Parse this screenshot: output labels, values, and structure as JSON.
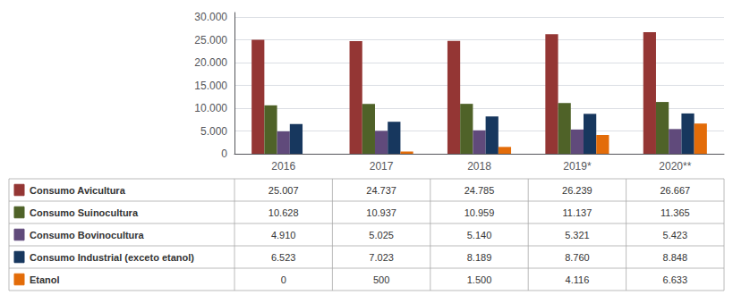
{
  "chart_data": {
    "type": "bar",
    "categories": [
      "2016",
      "2017",
      "2018",
      "2019*",
      "2020**"
    ],
    "series": [
      {
        "name": "Consumo Avicultura",
        "color": "#943634",
        "values": [
          25007,
          24737,
          24785,
          26239,
          26667
        ],
        "value_labels": [
          "25.007",
          "24.737",
          "24.785",
          "26.239",
          "26.667"
        ]
      },
      {
        "name": "Consumo Suinocultura",
        "color": "#4f6228",
        "values": [
          10628,
          10937,
          10959,
          11137,
          11365
        ],
        "value_labels": [
          "10.628",
          "10.937",
          "10.959",
          "11.137",
          "11.365"
        ]
      },
      {
        "name": "Consumo Bovinocultura",
        "color": "#604a7b",
        "values": [
          4910,
          5025,
          5140,
          5321,
          5423
        ],
        "value_labels": [
          "4.910",
          "5.025",
          "5.140",
          "5.321",
          "5.423"
        ]
      },
      {
        "name": "Consumo Industrial (exceto etanol)",
        "color": "#17375e",
        "values": [
          6523,
          7023,
          8189,
          8760,
          8848
        ],
        "value_labels": [
          "6.523",
          "7.023",
          "8.189",
          "8.760",
          "8.848"
        ]
      },
      {
        "name": "Etanol",
        "color": "#e36c09",
        "values": [
          0,
          500,
          1500,
          4116,
          6633
        ],
        "value_labels": [
          "0",
          "500",
          "1.500",
          "4.116",
          "6.633"
        ]
      }
    ],
    "ylim": [
      0,
      31000
    ],
    "yticks": [
      0,
      {
        "value": 5000,
        "label": "5.000"
      },
      {
        "value": 10000,
        "label": "10.000"
      },
      {
        "value": 15000,
        "label": "15.000"
      },
      {
        "value": 20000,
        "label": "20.000"
      },
      {
        "value": 25000,
        "label": "25.000"
      },
      {
        "value": 30000,
        "label": "30.000"
      }
    ],
    "grid": true
  }
}
